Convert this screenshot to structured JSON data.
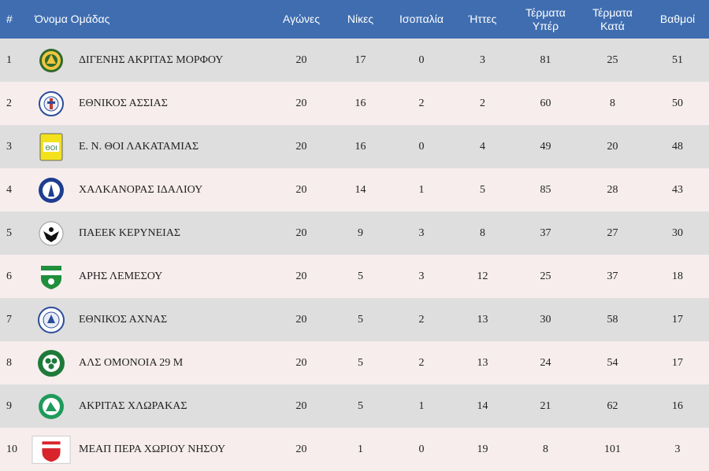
{
  "header": {
    "pos": "#",
    "team": "Όνομα Ομάδας",
    "played": "Αγώνες",
    "wins": "Νίκες",
    "draws": "Ισοπαλία",
    "losses": "Ήττες",
    "goals_for": [
      "Τέρματα",
      "Υπέρ"
    ],
    "goals_against": [
      "Τέρματα",
      "Κατά"
    ],
    "points": "Βαθμοί"
  },
  "rows": [
    {
      "pos": "1",
      "team": "ΔΙΓΕΝΗΣ ΑΚΡΙΤΑΣ ΜΟΡΦΟΥ",
      "logo": "digenis-logo-icon",
      "played": "20",
      "wins": "17",
      "draws": "0",
      "losses": "3",
      "gf": "81",
      "ga": "25",
      "pts": "51"
    },
    {
      "pos": "2",
      "team": "ΕΘΝΙΚΟΣ ΑΣΣΙΑΣ",
      "logo": "ethnikos-assias-logo-icon",
      "played": "20",
      "wins": "16",
      "draws": "2",
      "losses": "2",
      "gf": "60",
      "ga": "8",
      "pts": "50"
    },
    {
      "pos": "3",
      "team": "Ε. Ν. ΘΟΙ ΛΑΚΑΤΑΜΙΑΣ",
      "logo": "thoi-logo-icon",
      "played": "20",
      "wins": "16",
      "draws": "0",
      "losses": "4",
      "gf": "49",
      "ga": "20",
      "pts": "48"
    },
    {
      "pos": "4",
      "team": "ΧΑΛΚΑΝΟΡΑΣ ΙΔΑΛΙΟΥ",
      "logo": "chalkanoras-logo-icon",
      "played": "20",
      "wins": "14",
      "draws": "1",
      "losses": "5",
      "gf": "85",
      "ga": "28",
      "pts": "43"
    },
    {
      "pos": "5",
      "team": "ΠΑΕΕΚ ΚΕΡΥΝΕΙΑΣ",
      "logo": "paeek-logo-icon",
      "played": "20",
      "wins": "9",
      "draws": "3",
      "losses": "8",
      "gf": "37",
      "ga": "27",
      "pts": "30"
    },
    {
      "pos": "6",
      "team": "ΑΡΗΣ ΛΕΜΕΣΟΥ",
      "logo": "aris-logo-icon",
      "played": "20",
      "wins": "5",
      "draws": "3",
      "losses": "12",
      "gf": "25",
      "ga": "37",
      "pts": "18"
    },
    {
      "pos": "7",
      "team": "ΕΘΝΙΚΟΣ ΑΧΝΑΣ",
      "logo": "ethnikos-achnas-logo-icon",
      "played": "20",
      "wins": "5",
      "draws": "2",
      "losses": "13",
      "gf": "30",
      "ga": "58",
      "pts": "17"
    },
    {
      "pos": "8",
      "team": "ΑΛΣ ΟΜΟΝΟΙΑ 29 Μ",
      "logo": "omonoia-logo-icon",
      "played": "20",
      "wins": "5",
      "draws": "2",
      "losses": "13",
      "gf": "24",
      "ga": "54",
      "pts": "17"
    },
    {
      "pos": "9",
      "team": "ΑΚΡΙΤΑΣ ΧΛΩΡΑΚΑΣ",
      "logo": "akritas-logo-icon",
      "played": "20",
      "wins": "5",
      "draws": "1",
      "losses": "14",
      "gf": "21",
      "ga": "62",
      "pts": "16"
    },
    {
      "pos": "10",
      "team": "ΜΕΑΠ ΠΕΡΑ ΧΩΡΙΟΥ ΝΗΣΟΥ",
      "logo": "meap-logo-icon",
      "played": "20",
      "wins": "1",
      "draws": "0",
      "losses": "19",
      "gf": "8",
      "ga": "101",
      "pts": "3"
    }
  ],
  "colors": {
    "header_bg": "#3f6db0",
    "row_odd": "#dedede",
    "row_even": "#f7eded"
  }
}
